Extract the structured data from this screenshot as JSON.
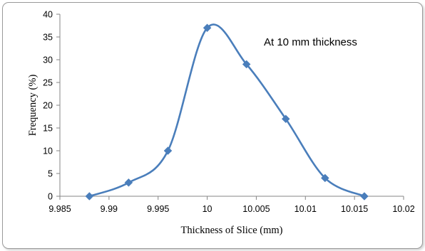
{
  "chart_data": {
    "type": "line",
    "title": "",
    "xlabel": "Thickness of Slice (mm)",
    "ylabel": "Frequency (%)",
    "xlim": [
      9.985,
      10.02
    ],
    "ylim": [
      0,
      40
    ],
    "x_ticks": [
      9.985,
      9.99,
      9.995,
      10,
      10.005,
      10.01,
      10.015,
      10.02
    ],
    "y_ticks": [
      0,
      5,
      10,
      15,
      20,
      25,
      30,
      35,
      40
    ],
    "x_tick_labels": [
      "9.985",
      "9.99",
      "9.995",
      "10",
      "10.005",
      "10.01",
      "10.015",
      "10.02"
    ],
    "y_tick_labels": [
      "0",
      "5",
      "10",
      "15",
      "20",
      "25",
      "30",
      "35",
      "40"
    ],
    "smooth": true,
    "marker": "diamond",
    "grid": false,
    "series": [
      {
        "color": "#4a7ebb",
        "x": [
          9.988,
          9.992,
          9.996,
          10.0,
          10.004,
          10.008,
          10.012,
          10.016
        ],
        "y": [
          0,
          3,
          10,
          37,
          29,
          17,
          4,
          0
        ]
      }
    ],
    "annotation": "At 10 mm thickness"
  }
}
